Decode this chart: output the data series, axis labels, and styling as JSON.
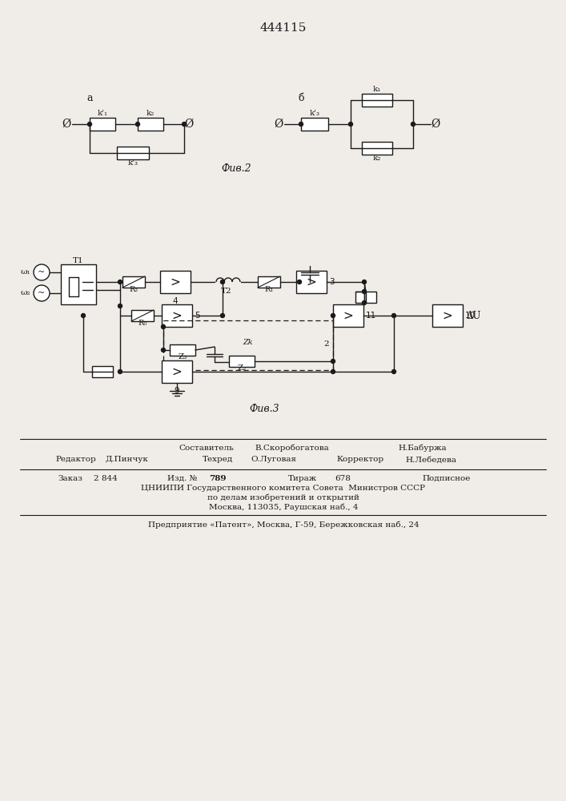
{
  "title": "444115",
  "fig2_caption": "Фив.2",
  "fig3_caption": "Фив.3",
  "footer_sestavitel": "Составитель",
  "footer_sestavitel_name": "В.Скоробогатова",
  "footer_baburzha": "Н.Бабуржа",
  "footer_redaktor": "Редактор",
  "footer_redaktor_name": "Д.Пинчук",
  "footer_tekhred": "Техред",
  "footer_tekhred_name": "О.Луговая",
  "footer_korrektor": "Корректор",
  "footer_korrektor_name": "Н.Лебедева",
  "footer_zakaz": "Заказ",
  "footer_zakaz_num": "2 844",
  "footer_izd": "Изд. №",
  "footer_izd_num": "789",
  "footer_tirazh": "Тираж",
  "footer_tirazh_num": "678",
  "footer_podpisnoe": "Подписное",
  "footer_org1": "ЦНИИПИ Государственного комитета Совета  Министров СССР",
  "footer_org2": "по делам изобретений и открытий",
  "footer_org3": "Москва, 113035, Раушская наб., 4",
  "footer_patent": "Предприятие «Патент», Москва, Г-59, Бережковская наб., 24",
  "bg_color": "#f0ede8",
  "line_color": "#1a1a1a"
}
